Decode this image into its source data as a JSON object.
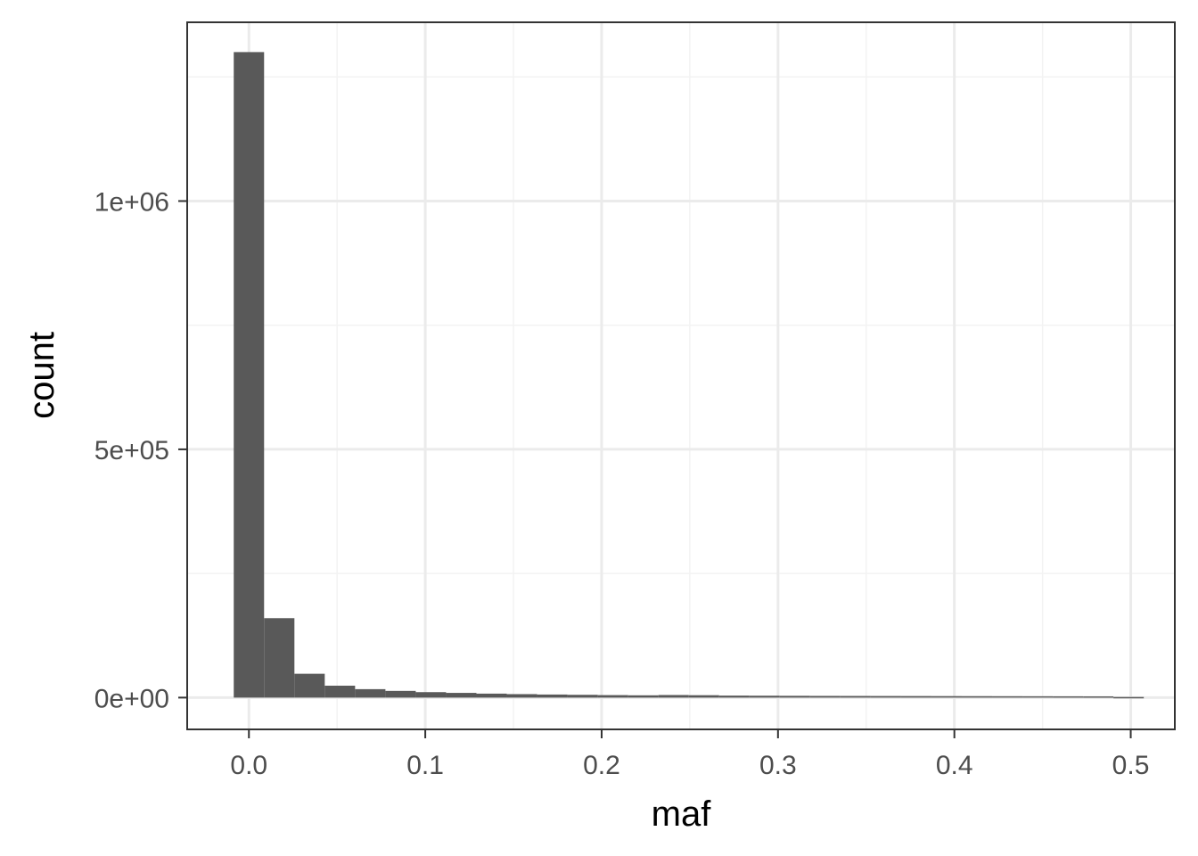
{
  "chart_data": {
    "type": "bar",
    "title": "",
    "xlabel": "maf",
    "ylabel": "count",
    "xlim": [
      -0.035,
      0.525
    ],
    "ylim": [
      -64000,
      1360000
    ],
    "x_ticks": [
      0.0,
      0.1,
      0.2,
      0.3,
      0.4,
      0.5
    ],
    "x_tick_labels": [
      "0.0",
      "0.1",
      "0.2",
      "0.3",
      "0.4",
      "0.5"
    ],
    "y_ticks": [
      0,
      500000,
      1000000
    ],
    "y_tick_labels": [
      "0e+00",
      "5e+05",
      "1e+06"
    ],
    "x_minor_ticks": [
      0.05,
      0.15,
      0.25,
      0.35,
      0.45
    ],
    "y_minor_ticks": [
      250000,
      750000,
      1250000
    ],
    "grid": true,
    "bin_width": 0.0172,
    "bins": [
      {
        "x_start": -0.0086,
        "count": 1300000
      },
      {
        "x_start": 0.0086,
        "count": 160000
      },
      {
        "x_start": 0.0258,
        "count": 48000
      },
      {
        "x_start": 0.043,
        "count": 24000
      },
      {
        "x_start": 0.0602,
        "count": 17000
      },
      {
        "x_start": 0.0774,
        "count": 13500
      },
      {
        "x_start": 0.0946,
        "count": 11000
      },
      {
        "x_start": 0.1118,
        "count": 9500
      },
      {
        "x_start": 0.129,
        "count": 8000
      },
      {
        "x_start": 0.1462,
        "count": 7000
      },
      {
        "x_start": 0.1634,
        "count": 6200
      },
      {
        "x_start": 0.1806,
        "count": 5600
      },
      {
        "x_start": 0.1978,
        "count": 5000
      },
      {
        "x_start": 0.215,
        "count": 4600
      },
      {
        "x_start": 0.2322,
        "count": 5200
      },
      {
        "x_start": 0.2494,
        "count": 4800
      },
      {
        "x_start": 0.2666,
        "count": 4000
      },
      {
        "x_start": 0.2838,
        "count": 3800
      },
      {
        "x_start": 0.301,
        "count": 3600
      },
      {
        "x_start": 0.3182,
        "count": 3400
      },
      {
        "x_start": 0.3354,
        "count": 3300
      },
      {
        "x_start": 0.3526,
        "count": 3200
      },
      {
        "x_start": 0.3698,
        "count": 3100
      },
      {
        "x_start": 0.387,
        "count": 3000
      },
      {
        "x_start": 0.4042,
        "count": 2900
      },
      {
        "x_start": 0.4214,
        "count": 2800
      },
      {
        "x_start": 0.4386,
        "count": 2700
      },
      {
        "x_start": 0.4558,
        "count": 2600
      },
      {
        "x_start": 0.473,
        "count": 2500
      },
      {
        "x_start": 0.4902,
        "count": 1200
      }
    ],
    "colors": {
      "bar": "#595959",
      "panel_border": "#333333",
      "grid_major": "#ebebeb",
      "grid_minor": "#f3f3f3",
      "tick_label": "#4d4d4d",
      "axis_title": "#000000"
    }
  }
}
